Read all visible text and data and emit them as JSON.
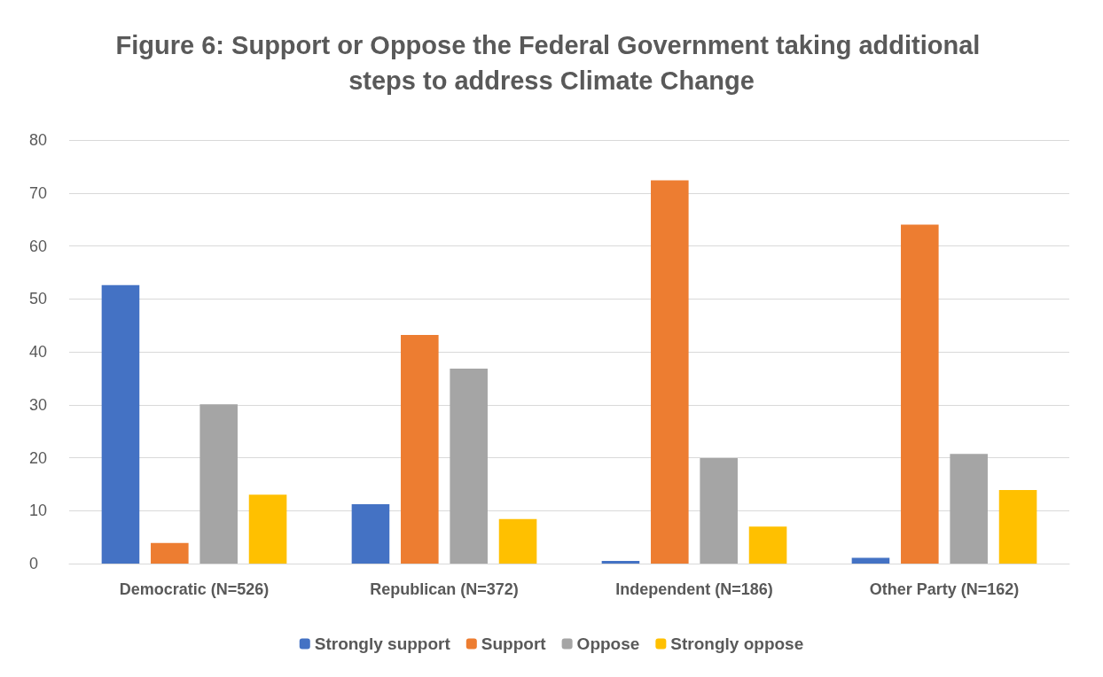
{
  "chart_data": {
    "type": "bar",
    "title": "Figure 6: Support or Oppose the Federal Government taking additional steps to address Climate Change",
    "categories": [
      "Democratic (N=526)",
      "Republican (N=372)",
      "Independent (N=186)",
      "Other Party (N=162)"
    ],
    "series": [
      {
        "name": "Strongly support",
        "color": "#4472c4",
        "values": [
          52.6,
          11.2,
          0.5,
          1.1
        ]
      },
      {
        "name": "Support",
        "color": "#ed7d31",
        "values": [
          3.9,
          43.2,
          72.4,
          64.0
        ]
      },
      {
        "name": "Oppose",
        "color": "#a5a5a5",
        "values": [
          30.1,
          36.8,
          19.9,
          20.7
        ]
      },
      {
        "name": "Strongly oppose",
        "color": "#ffc000",
        "values": [
          13.0,
          8.4,
          7.0,
          13.9
        ]
      }
    ],
    "ylim": [
      0,
      80
    ],
    "yticks": [
      0,
      10,
      20,
      30,
      40,
      50,
      60,
      70,
      80
    ],
    "grid": "y",
    "legend": "bottom"
  }
}
